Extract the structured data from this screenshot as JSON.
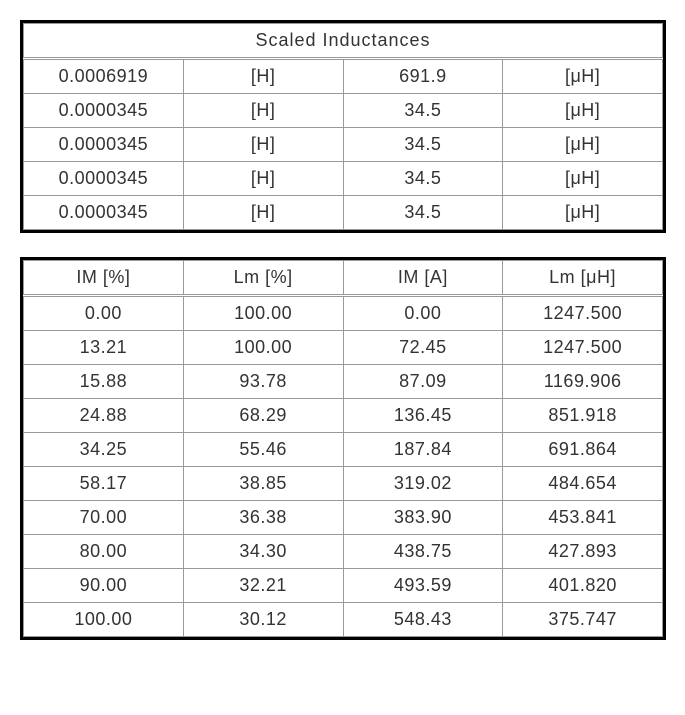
{
  "table1": {
    "title": "Scaled Inductances",
    "rows": [
      [
        "0.0006919",
        "[H]",
        "691.9",
        "[μH]"
      ],
      [
        "0.0000345",
        "[H]",
        "34.5",
        "[μH]"
      ],
      [
        "0.0000345",
        "[H]",
        "34.5",
        "[μH]"
      ],
      [
        "0.0000345",
        "[H]",
        "34.5",
        "[μH]"
      ],
      [
        "0.0000345",
        "[H]",
        "34.5",
        "[μH]"
      ]
    ]
  },
  "table2": {
    "columns": [
      "IM [%]",
      "Lm [%]",
      "IM [A]",
      "Lm [μH]"
    ],
    "rows": [
      [
        "0.00",
        "100.00",
        "0.00",
        "1247.500"
      ],
      [
        "13.21",
        "100.00",
        "72.45",
        "1247.500"
      ],
      [
        "15.88",
        "93.78",
        "87.09",
        "1169.906"
      ],
      [
        "24.88",
        "68.29",
        "136.45",
        "851.918"
      ],
      [
        "34.25",
        "55.46",
        "187.84",
        "691.864"
      ],
      [
        "58.17",
        "38.85",
        "319.02",
        "484.654"
      ],
      [
        "70.00",
        "36.38",
        "383.90",
        "453.841"
      ],
      [
        "80.00",
        "34.30",
        "438.75",
        "427.893"
      ],
      [
        "90.00",
        "32.21",
        "493.59",
        "401.820"
      ],
      [
        "100.00",
        "30.12",
        "548.43",
        "375.747"
      ]
    ]
  },
  "style": {
    "border_outer": "#000000",
    "border_inner": "#999999",
    "text_color": "#333333",
    "background_color": "#ffffff",
    "font_size": 18
  }
}
